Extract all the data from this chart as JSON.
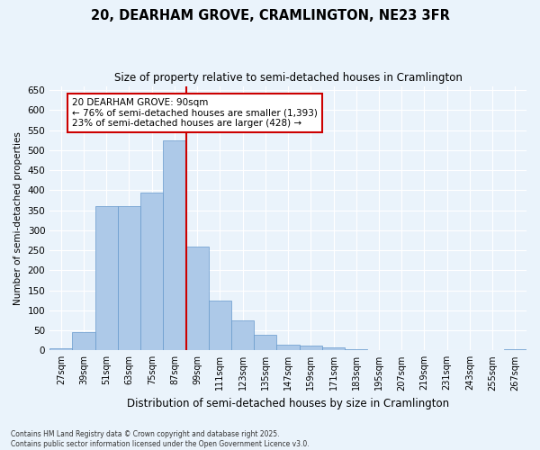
{
  "title": "20, DEARHAM GROVE, CRAMLINGTON, NE23 3FR",
  "subtitle": "Size of property relative to semi-detached houses in Cramlington",
  "xlabel": "Distribution of semi-detached houses by size in Cramlington",
  "ylabel": "Number of semi-detached properties",
  "categories": [
    "27sqm",
    "39sqm",
    "51sqm",
    "63sqm",
    "75sqm",
    "87sqm",
    "99sqm",
    "111sqm",
    "123sqm",
    "135sqm",
    "147sqm",
    "159sqm",
    "171sqm",
    "183sqm",
    "195sqm",
    "207sqm",
    "219sqm",
    "231sqm",
    "243sqm",
    "255sqm",
    "267sqm"
  ],
  "values": [
    5,
    45,
    360,
    360,
    395,
    525,
    260,
    125,
    75,
    40,
    15,
    12,
    8,
    3,
    0,
    0,
    0,
    0,
    0,
    0,
    2
  ],
  "bar_color": "#adc9e8",
  "bar_edge_color": "#6699cc",
  "vline_color": "#cc0000",
  "vline_bin_index": 5,
  "annotation_title": "20 DEARHAM GROVE: 90sqm",
  "annotation_line1": "← 76% of semi-detached houses are smaller (1,393)",
  "annotation_line2": "23% of semi-detached houses are larger (428) →",
  "annotation_box_color": "#cc0000",
  "ylim": [
    0,
    660
  ],
  "yticks": [
    0,
    50,
    100,
    150,
    200,
    250,
    300,
    350,
    400,
    450,
    500,
    550,
    600,
    650
  ],
  "background_color": "#eaf3fb",
  "grid_color": "#ffffff",
  "footer_line1": "Contains HM Land Registry data © Crown copyright and database right 2025.",
  "footer_line2": "Contains public sector information licensed under the Open Government Licence v3.0."
}
